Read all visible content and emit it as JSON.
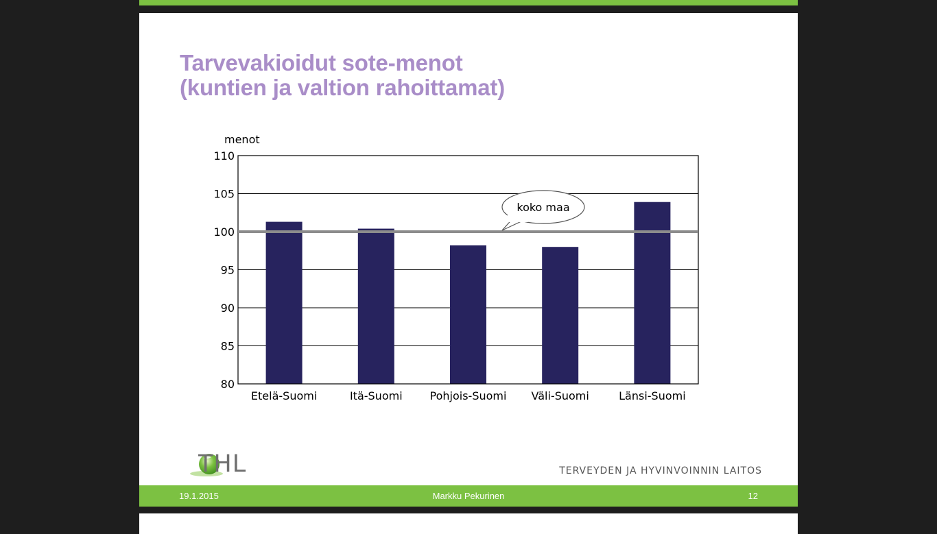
{
  "slide": {
    "title_line1": "Tarvevakioidut sote-menot",
    "title_line2": "(kuntien ja valtion rahoittamat)",
    "logo_text": "THL",
    "org_name": "TERVEYDEN JA HYVINVOINNIN LAITOS",
    "footer": {
      "date": "19.1.2015",
      "author": "Markku Pekurinen",
      "page": "12"
    }
  },
  "chart_data": {
    "type": "bar",
    "categories": [
      "Etelä-Suomi",
      "Itä-Suomi",
      "Pohjois-Suomi",
      "Väli-Suomi",
      "Länsi-Suomi"
    ],
    "values": [
      101.3,
      100.4,
      98.2,
      98.0,
      103.9
    ],
    "ylabel": "menot",
    "ylim": [
      80,
      110
    ],
    "yticks": [
      80,
      85,
      90,
      95,
      100,
      105,
      110
    ],
    "reference_line": {
      "value": 100,
      "label": "koko maa"
    },
    "grid": true,
    "colors": {
      "bar": "#27235e",
      "reference": "#8c8c8c"
    }
  }
}
